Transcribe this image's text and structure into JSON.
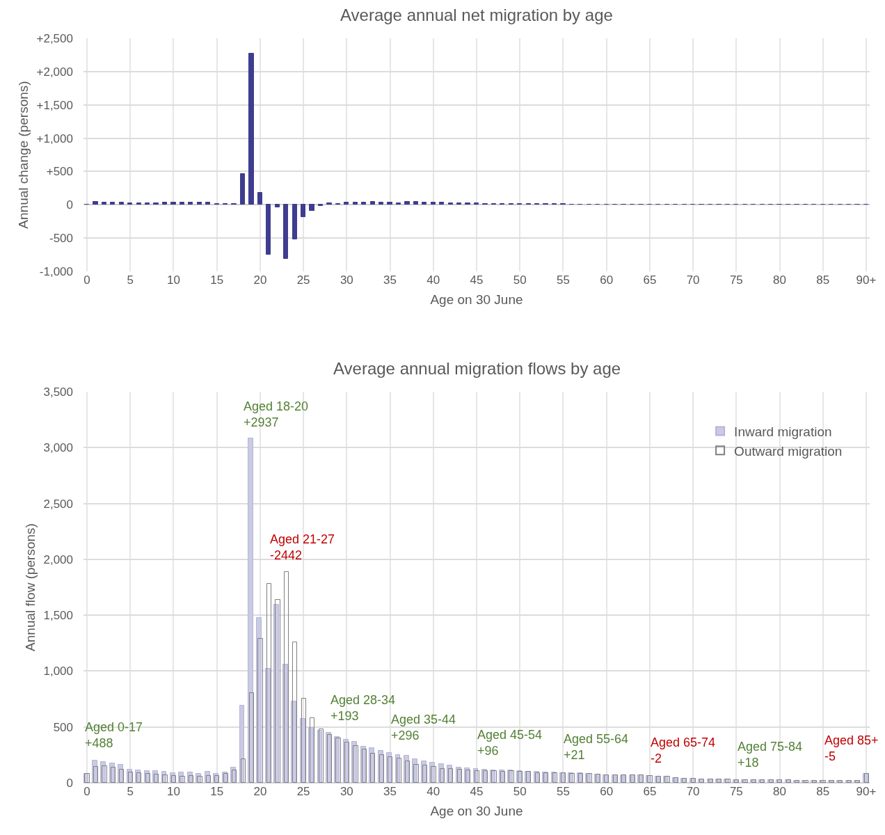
{
  "chart_data": [
    {
      "type": "bar",
      "title": "Average annual net migration by age",
      "xlabel": "Age on 30 June",
      "ylabel": "Annual change (persons)",
      "x": [
        0,
        1,
        2,
        3,
        4,
        5,
        6,
        7,
        8,
        9,
        10,
        11,
        12,
        13,
        14,
        15,
        16,
        17,
        18,
        19,
        20,
        21,
        22,
        23,
        24,
        25,
        26,
        27,
        28,
        29,
        30,
        31,
        32,
        33,
        34,
        35,
        36,
        37,
        38,
        39,
        40,
        41,
        42,
        43,
        44,
        45,
        46,
        47,
        48,
        49,
        50,
        51,
        52,
        53,
        54,
        55,
        56,
        57,
        58,
        59,
        60,
        61,
        62,
        63,
        64,
        65,
        66,
        67,
        68,
        69,
        70,
        71,
        72,
        73,
        74,
        75,
        76,
        77,
        78,
        79,
        80,
        81,
        82,
        83,
        84,
        85,
        86,
        87,
        88,
        89,
        90
      ],
      "series": [
        {
          "color": "#3f3d8f",
          "values": [
            0,
            40,
            30,
            30,
            30,
            20,
            20,
            20,
            20,
            30,
            30,
            30,
            30,
            30,
            30,
            10,
            10,
            10,
            460,
            2270,
            180,
            -750,
            -40,
            -810,
            -520,
            -180,
            -90,
            -20,
            20,
            10,
            30,
            30,
            30,
            40,
            30,
            30,
            20,
            40,
            40,
            30,
            30,
            30,
            20,
            20,
            20,
            20,
            10,
            10,
            10,
            10,
            10,
            10,
            10,
            10,
            10,
            10,
            0,
            0,
            0,
            0,
            0,
            0,
            0,
            0,
            0,
            0,
            0,
            0,
            0,
            0,
            0,
            0,
            0,
            0,
            0,
            0,
            0,
            0,
            0,
            0,
            0,
            0,
            0,
            0,
            0,
            0,
            0,
            0,
            0,
            0,
            0
          ]
        }
      ],
      "xlim": [
        -0.4,
        90.4
      ],
      "xticks": [
        0,
        5,
        10,
        15,
        20,
        25,
        30,
        35,
        40,
        45,
        50,
        55,
        60,
        65,
        70,
        75,
        80,
        85,
        {
          "value": 90,
          "label": "90+"
        }
      ],
      "ylim": [
        -1000,
        2500
      ],
      "yticks": [
        {
          "value": -1000,
          "label": "-1,000"
        },
        -500,
        0,
        {
          "value": 500,
          "label": "+500"
        },
        {
          "value": 1000,
          "label": "+1,000"
        },
        {
          "value": 1500,
          "label": "+1,500"
        },
        {
          "value": 2000,
          "label": "+2,000"
        },
        {
          "value": 2500,
          "label": "+2,500"
        }
      ],
      "grid": true,
      "legend": false
    },
    {
      "type": "bar",
      "title": "Average annual migration flows by age",
      "xlabel": "Age on 30 June",
      "ylabel": "Annual flow (persons)",
      "x": [
        0,
        1,
        2,
        3,
        4,
        5,
        6,
        7,
        8,
        9,
        10,
        11,
        12,
        13,
        14,
        15,
        16,
        17,
        18,
        19,
        20,
        21,
        22,
        23,
        24,
        25,
        26,
        27,
        28,
        29,
        30,
        31,
        32,
        33,
        34,
        35,
        36,
        37,
        38,
        39,
        40,
        41,
        42,
        43,
        44,
        45,
        46,
        47,
        48,
        49,
        50,
        51,
        52,
        53,
        54,
        55,
        56,
        57,
        58,
        59,
        60,
        61,
        62,
        63,
        64,
        65,
        66,
        67,
        68,
        69,
        70,
        71,
        72,
        73,
        74,
        75,
        76,
        77,
        78,
        79,
        80,
        81,
        82,
        83,
        84,
        85,
        86,
        87,
        88,
        89,
        90
      ],
      "series": [
        {
          "name": "Inward migration",
          "color": "#c9cbe3",
          "values": [
            80,
            200,
            188,
            173,
            159,
            119,
            113,
            107,
            104,
            98,
            90,
            94,
            94,
            82,
            100,
            79,
            92,
            138,
            694,
            3083,
            1477,
            1019,
            1595,
            1060,
            729,
            576,
            490,
            470,
            446,
            412,
            387,
            365,
            325,
            312,
            287,
            265,
            250,
            240,
            210,
            196,
            183,
            169,
            154,
            140,
            133,
            125,
            121,
            115,
            110,
            110,
            104,
            102,
            98,
            95,
            93,
            90,
            88,
            85,
            80,
            75,
            70,
            70,
            69,
            69,
            69,
            62,
            58,
            53,
            42,
            40,
            38,
            32,
            31,
            31,
            30,
            26,
            25,
            24,
            23,
            23,
            22,
            22,
            21,
            21,
            21,
            20,
            20,
            20,
            20,
            20,
            83
          ]
        },
        {
          "name": "Outward migration",
          "color": "#7f7f7f",
          "values": [
            80,
            145,
            148,
            136,
            117,
            96,
            90,
            84,
            75,
            69,
            61,
            56,
            61,
            56,
            63,
            61,
            82,
            115,
            213,
            801,
            1287,
            1780,
            1637,
            1889,
            1259,
            755,
            577,
            479,
            431,
            400,
            360,
            331,
            298,
            262,
            248,
            231,
            219,
            194,
            162,
            156,
            142,
            123,
            125,
            117,
            112,
            108,
            106,
            104,
            102,
            104,
            100,
            98,
            90,
            88,
            86,
            85,
            83,
            82,
            78,
            72,
            68,
            68,
            67,
            67,
            67,
            62,
            58,
            53,
            42,
            40,
            38,
            32,
            31,
            31,
            30,
            26,
            25,
            24,
            23,
            23,
            22,
            22,
            21,
            21,
            21,
            21,
            21,
            21,
            21,
            21,
            84
          ]
        }
      ],
      "xlim": [
        -0.4,
        90.4
      ],
      "xticks": [
        0,
        5,
        10,
        15,
        20,
        25,
        30,
        35,
        40,
        45,
        50,
        55,
        60,
        65,
        70,
        75,
        80,
        85,
        {
          "value": 90,
          "label": "90+"
        }
      ],
      "ylim": [
        0,
        3500
      ],
      "yticks": [
        0,
        500,
        {
          "value": 1000,
          "label": "1,000"
        },
        {
          "value": 1500,
          "label": "1,500"
        },
        {
          "value": 2000,
          "label": "2,000"
        },
        {
          "value": 2500,
          "label": "2,500"
        },
        {
          "value": 3000,
          "label": "3,000"
        },
        {
          "value": 3500,
          "label": "3,500"
        }
      ],
      "grid": true,
      "legend": "top right",
      "annotations": [
        "Aged 0-17\n+488",
        "Aged 18-20\n+2937",
        "Aged 21-27\n-2442",
        "Aged 28-34\n+193",
        "Aged 35-44\n+296",
        "Aged 45-54\n+96",
        "Aged 55-64\n+21",
        "Aged 65-74\n-2",
        "Aged 75-84\n+18",
        "Aged 85+\n-5"
      ]
    }
  ]
}
